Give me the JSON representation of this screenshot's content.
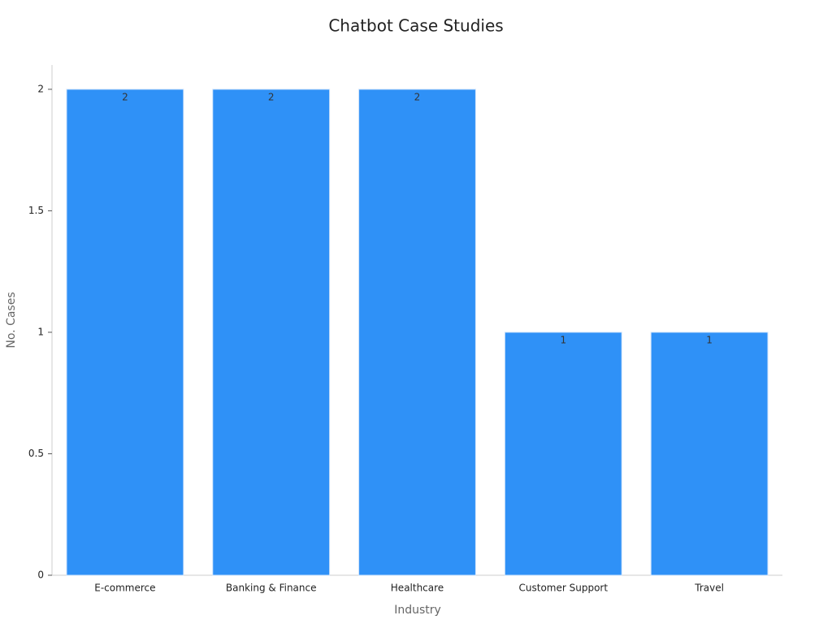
{
  "chart_data": {
    "type": "bar",
    "title": "Chatbot Case Studies",
    "x_label": "Industry",
    "y_label": "No. Cases",
    "categories": [
      "E-commerce",
      "Banking & Finance",
      "Healthcare",
      "Customer Support",
      "Travel"
    ],
    "values": [
      2,
      2,
      2,
      1,
      1
    ],
    "color": "#2f91f7",
    "ylim": [
      0,
      2.1
    ],
    "yticks": [
      0,
      0.5,
      1,
      1.5,
      2
    ],
    "grid": false
  }
}
